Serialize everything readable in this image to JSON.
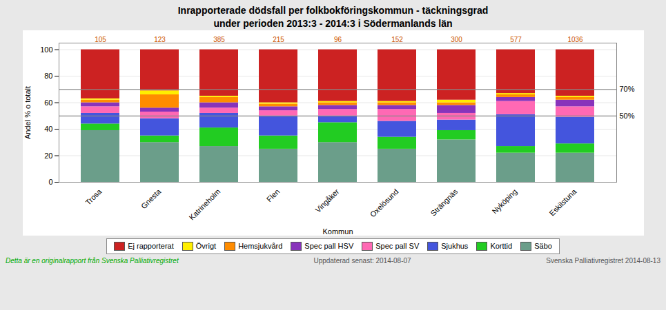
{
  "chart_data": {
    "type": "bar",
    "stacked": true,
    "title": "Inrapporterade dödsfall per folkbokföringskommun - täckningsgrad\nunder perioden 2013:3 - 2014:3 i Södermanlands län",
    "xlabel": "Kommun",
    "ylabel": "Andel % o totalt",
    "categories": [
      "Trosa",
      "Gnesta",
      "Katrineholm",
      "Flen",
      "Vingåker",
      "Oxelösund",
      "Strängnäs",
      "Nyköping",
      "Eskilstuna"
    ],
    "series": [
      {
        "name": "Säbo",
        "color": "#6b9e8a",
        "values": [
          39,
          30,
          27,
          25,
          30,
          25,
          32,
          22,
          22
        ]
      },
      {
        "name": "Korttid",
        "color": "#22cc22",
        "values": [
          5,
          5,
          14,
          10,
          15,
          9,
          7,
          5,
          7
        ]
      },
      {
        "name": "Sjukhus",
        "color": "#4455dd",
        "values": [
          8,
          13,
          11,
          15,
          5,
          12,
          8,
          24,
          20
        ]
      },
      {
        "name": "Spec pall SV",
        "color": "#ff69b4",
        "values": [
          5,
          5,
          4,
          4,
          5,
          9,
          5,
          10,
          8
        ]
      },
      {
        "name": "Spec pall HSV",
        "color": "#8833bb",
        "values": [
          3,
          3,
          4,
          3,
          3,
          3,
          6,
          3,
          5
        ]
      },
      {
        "name": "Hemsjukvård",
        "color": "#ff8c00",
        "values": [
          2,
          10,
          4,
          2,
          2,
          2,
          2,
          2,
          2
        ]
      },
      {
        "name": "Övrigt",
        "color": "#ffee00",
        "values": [
          1,
          3,
          1,
          1,
          1,
          1,
          2,
          1,
          1
        ]
      },
      {
        "name": "Ej rapporterat",
        "color": "#cc2222",
        "values": [
          37,
          31,
          35,
          40,
          39,
          39,
          38,
          33,
          35
        ]
      }
    ],
    "totals": [
      105,
      123,
      385,
      215,
      96,
      152,
      300,
      577,
      1036
    ],
    "reference_lines": [
      {
        "value": 70,
        "label": "70%"
      },
      {
        "value": 50,
        "label": "50%"
      }
    ],
    "ylim": [
      0,
      105
    ],
    "yticks": [
      0,
      20,
      40,
      60,
      80,
      100
    ],
    "grid": true,
    "legend": "bottom",
    "footer": [
      "Detta är en originalrapport från Svenska Palliativregistret",
      "Uppdaterad senast:  2014-08-07",
      "Svenska Palliativregistret 2014-08-13"
    ]
  }
}
